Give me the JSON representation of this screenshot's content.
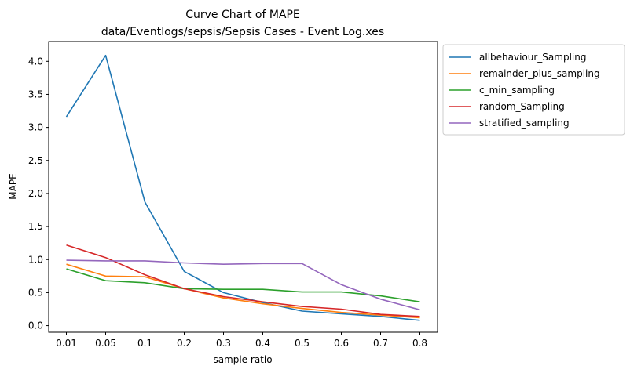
{
  "chart_data": {
    "type": "line",
    "title": "Curve Chart of MAPE",
    "subtitle": "data/Eventlogs/sepsis/Sepsis Cases - Event Log.xes",
    "xlabel": "sample ratio",
    "ylabel": "MAPE",
    "categories": [
      "0.01",
      "0.05",
      "0.1",
      "0.2",
      "0.3",
      "0.4",
      "0.5",
      "0.6",
      "0.7",
      "0.8"
    ],
    "ylim": [
      -0.1,
      4.3
    ],
    "yticks": [
      "0.0",
      "0.5",
      "1.0",
      "1.5",
      "2.0",
      "2.5",
      "3.0",
      "3.5",
      "4.0"
    ],
    "grid": false,
    "legend_position": "outside-top-right",
    "series": [
      {
        "name": "allbehaviour_Sampling",
        "color": "#1f77b4",
        "values": [
          3.16,
          4.09,
          1.87,
          0.82,
          0.5,
          0.35,
          0.22,
          0.18,
          0.14,
          0.08
        ]
      },
      {
        "name": "remainder_plus_sampling",
        "color": "#ff7f0e",
        "values": [
          0.93,
          0.75,
          0.74,
          0.56,
          0.42,
          0.33,
          0.26,
          0.2,
          0.16,
          0.12
        ]
      },
      {
        "name": "c_min_sampling",
        "color": "#2ca02c",
        "values": [
          0.86,
          0.68,
          0.65,
          0.56,
          0.55,
          0.55,
          0.51,
          0.51,
          0.45,
          0.36
        ]
      },
      {
        "name": "random_Sampling",
        "color": "#d62728",
        "values": [
          1.22,
          1.03,
          0.77,
          0.56,
          0.44,
          0.36,
          0.29,
          0.25,
          0.17,
          0.14
        ]
      },
      {
        "name": "stratified_sampling",
        "color": "#9467bd",
        "values": [
          0.99,
          0.98,
          0.98,
          0.95,
          0.93,
          0.94,
          0.94,
          0.62,
          0.4,
          0.24
        ]
      }
    ]
  }
}
